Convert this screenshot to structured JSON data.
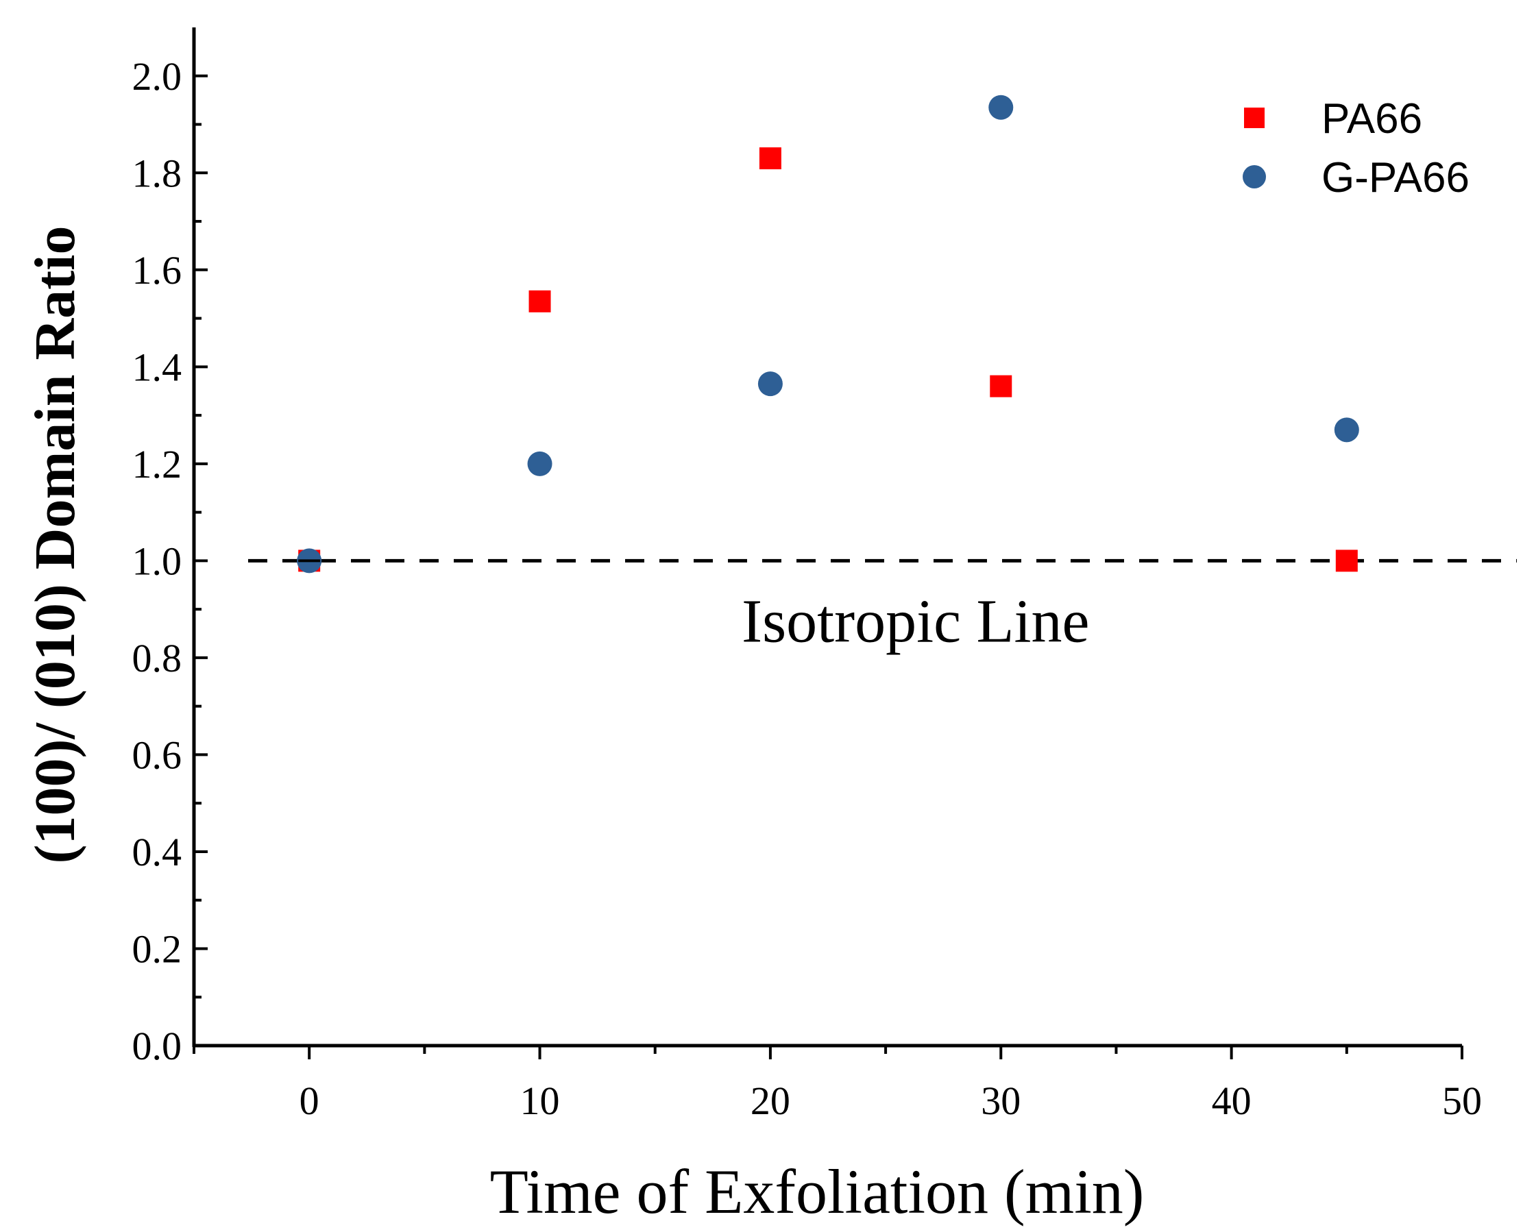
{
  "chart_data": {
    "type": "scatter",
    "title": "",
    "xlabel": "Time of Exfoliation (min)",
    "ylabel": "(100)/ (010) Domain Ratio",
    "xlim": [
      -5,
      50
    ],
    "ylim": [
      0,
      2.1
    ],
    "x_ticks": [
      "0",
      "10",
      "20",
      "30",
      "40",
      "50"
    ],
    "y_ticks": [
      "0.0",
      "0.2",
      "0.4",
      "0.6",
      "0.8",
      "1.0",
      "1.2",
      "1.4",
      "1.6",
      "1.8",
      "2.0"
    ],
    "x_tick_values": [
      0,
      10,
      20,
      30,
      40,
      50
    ],
    "y_tick_values": [
      0.0,
      0.2,
      0.4,
      0.6,
      0.8,
      1.0,
      1.2,
      1.4,
      1.6,
      1.8,
      2.0
    ],
    "x_minor_tick_values": [
      -5,
      5,
      15,
      25,
      35,
      45
    ],
    "y_minor_tick_values": [
      0.1,
      0.3,
      0.5,
      0.7,
      0.9,
      1.1,
      1.3,
      1.5,
      1.7,
      1.9
    ],
    "legend_position": "top-right",
    "series": [
      {
        "name": "PA66",
        "marker": "square",
        "color": "#ff0000",
        "x": [
          0,
          10,
          20,
          30,
          45
        ],
        "y": [
          1.0,
          1.535,
          1.83,
          1.36,
          1.0
        ]
      },
      {
        "name": "G-PA66",
        "marker": "circle",
        "color": "#2e5f95",
        "x": [
          0,
          10,
          20,
          30,
          45
        ],
        "y": [
          1.0,
          1.2,
          1.365,
          1.935,
          1.27
        ]
      }
    ],
    "reference_line": {
      "y": 1.0,
      "style": "dashed",
      "color": "#000000",
      "label": "Isotropic Line"
    }
  }
}
